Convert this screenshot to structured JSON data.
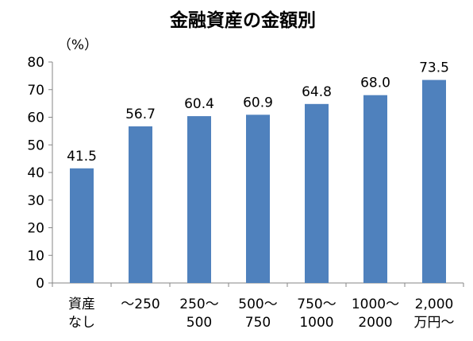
{
  "chart_data": {
    "type": "bar",
    "title": "金融資産の金額別",
    "ylabel": "（%）",
    "xlabel": "",
    "ylim": [
      0,
      80
    ],
    "yticks": [
      0,
      10,
      20,
      30,
      40,
      50,
      60,
      70,
      80
    ],
    "grid": false,
    "legend": "none",
    "bar_color": "#4f81bd",
    "categories": [
      [
        "資産",
        "なし"
      ],
      [
        "～250"
      ],
      [
        "250～",
        "500"
      ],
      [
        "500～",
        "750"
      ],
      [
        "750～",
        "1000"
      ],
      [
        "1000～",
        "2000"
      ],
      [
        "2,000",
        "万円～"
      ]
    ],
    "values": [
      41.5,
      56.7,
      60.4,
      60.9,
      64.8,
      68.0,
      73.5
    ],
    "data_labels": [
      "41.5",
      "56.7",
      "60.4",
      "60.9",
      "64.8",
      "68.0",
      "73.5"
    ]
  }
}
